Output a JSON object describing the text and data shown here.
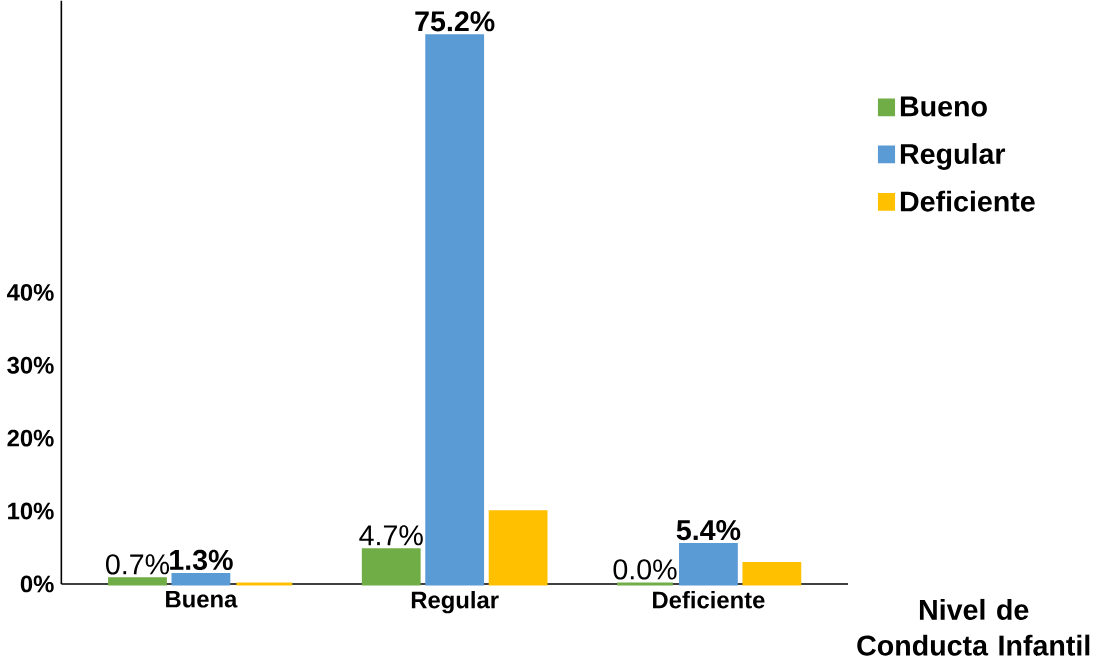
{
  "chart_data": {
    "type": "bar",
    "categories": [
      "Buena",
      "Regular",
      "Deficiente"
    ],
    "xlabel": "Nivel de Conducta Infantil",
    "series": [
      {
        "name": "Bueno",
        "color": "#70ad47",
        "values": [
          0.7,
          4.7,
          0.0
        ],
        "value_labels": [
          "0.7%",
          "4.7%",
          "0.0%"
        ]
      },
      {
        "name": "Regular",
        "color": "#5b9bd5",
        "values": [
          1.3,
          75.2,
          5.4
        ],
        "value_labels": [
          "**1.3%**",
          "**75.2%**",
          "**5.4%**"
        ]
      },
      {
        "name": "Deficiente",
        "color": "#ffc000",
        "values": [
          0.0,
          9.9,
          2.8
        ],
        "value_labels": [
          null,
          null,
          null
        ]
      }
    ],
    "ylim": [
      0,
      80
    ],
    "yticks": [
      {
        "value": 0,
        "label": "0%"
      },
      {
        "value": 10,
        "label": "10%"
      },
      {
        "value": 20,
        "label": "20%"
      },
      {
        "value": 30,
        "label": "30%"
      },
      {
        "value": 40,
        "label": "40%"
      }
    ],
    "grid": false,
    "legend": "right"
  }
}
